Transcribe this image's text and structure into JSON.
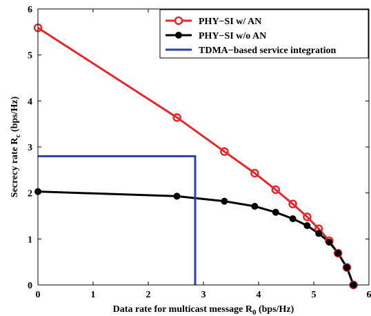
{
  "chart_data": {
    "type": "line",
    "xlabel": "Data rate for multicast message R",
    "xlabel_sub": "0",
    "xlabel_unit": "(bps/Hz)",
    "ylabel": "Secrecy rate R",
    "ylabel_sub": "c",
    "ylabel_unit": "(bps/Hz)",
    "xlim": [
      0,
      6
    ],
    "ylim": [
      0,
      6
    ],
    "xticks": [
      "0",
      "1",
      "2",
      "3",
      "4",
      "5",
      "6"
    ],
    "yticks": [
      "0",
      "1",
      "2",
      "3",
      "4",
      "5",
      "6"
    ],
    "grid": false,
    "legend_position": "top-right",
    "series": [
      {
        "name": "PHY−SI w/ AN",
        "color": "#e8262b",
        "marker": "open-circle",
        "x": [
          0,
          2.52,
          3.38,
          3.93,
          4.31,
          4.62,
          4.88,
          5.09,
          5.28,
          5.44,
          5.6,
          5.72
        ],
        "y": [
          5.59,
          3.64,
          2.9,
          2.43,
          2.07,
          1.76,
          1.48,
          1.22,
          0.96,
          0.69,
          0.38,
          0.0
        ]
      },
      {
        "name": "PHY−SI w/o AN",
        "color": "#000000",
        "marker": "filled-circle",
        "x": [
          0,
          2.52,
          3.38,
          3.93,
          4.31,
          4.62,
          4.88,
          5.09,
          5.28,
          5.44,
          5.6,
          5.72
        ],
        "y": [
          2.03,
          1.93,
          1.82,
          1.71,
          1.58,
          1.44,
          1.29,
          1.12,
          0.93,
          0.69,
          0.38,
          0.0
        ]
      },
      {
        "name": "TDMA−based service integration",
        "color": "#2b3fa8",
        "marker": "none",
        "x": [
          0,
          2.85,
          2.85
        ],
        "y": [
          2.8,
          2.8,
          0
        ]
      }
    ]
  }
}
